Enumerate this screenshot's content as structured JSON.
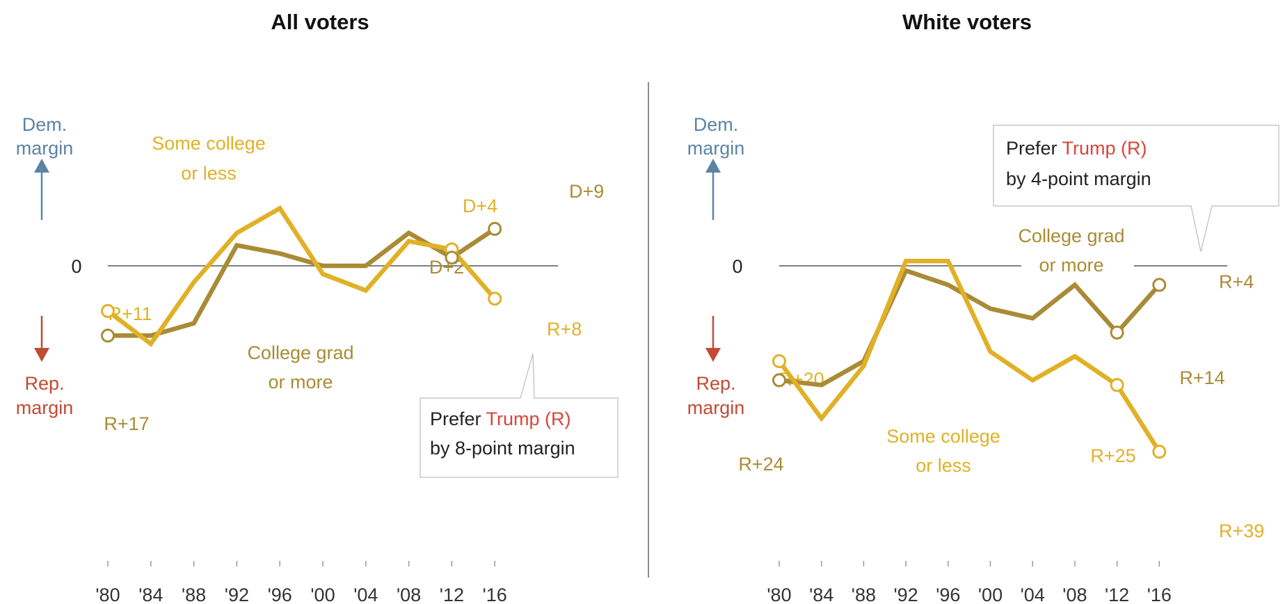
{
  "colors": {
    "some_college": "#e0b127",
    "college_grad": "#a98b35",
    "dem": "#5b84a4",
    "rep": "#c24a32",
    "trump": "#d9453a",
    "baseline": "#555555"
  },
  "legend": {
    "dem_top": "Dem.",
    "dem_bottom": "margin",
    "rep_top": "Rep.",
    "rep_bottom": "margin"
  },
  "chart_data": [
    {
      "type": "line",
      "title": "All voters",
      "x": [
        "'80",
        "'84",
        "'88",
        "'92",
        "'96",
        "'00",
        "'04",
        "'08",
        "'12",
        "'16"
      ],
      "zero_label": "0",
      "ylim": [
        -28,
        14
      ],
      "series": [
        {
          "name": "Some college or less",
          "label_lines": [
            "Some college",
            "or less"
          ],
          "color_key": "some_college",
          "values": [
            -11,
            -19,
            -4,
            8,
            14,
            -2,
            -6,
            6,
            4,
            -8
          ]
        },
        {
          "name": "College grad or more",
          "label_lines": [
            "College grad",
            "or more"
          ],
          "color_key": "college_grad",
          "values": [
            -17,
            -17,
            -14,
            5,
            3,
            0,
            0,
            8,
            2,
            9
          ]
        }
      ],
      "annotations": [
        {
          "text": "R+11",
          "color_key": "some_college"
        },
        {
          "text": "R+17",
          "color_key": "college_grad"
        },
        {
          "text": "D+4",
          "color_key": "some_college"
        },
        {
          "text": "D+2",
          "color_key": "college_grad"
        },
        {
          "text": "D+9",
          "color_key": "college_grad"
        },
        {
          "text": "R+8",
          "color_key": "some_college"
        }
      ],
      "callout": {
        "line1_prefix": "Prefer ",
        "highlight": "Trump (R)",
        "line2": "by 8-point margin"
      }
    },
    {
      "type": "line",
      "title": "White voters",
      "x": [
        "'80",
        "'84",
        "'88",
        "'92",
        "'96",
        "'00",
        "'04",
        "'08",
        "'12",
        "'16"
      ],
      "zero_label": "0",
      "ylim": [
        -45,
        10
      ],
      "series": [
        {
          "name": "Some college or less",
          "label_lines": [
            "Some college",
            "or less"
          ],
          "color_key": "some_college",
          "values": [
            -20,
            -32,
            -21,
            1,
            1,
            -18,
            -24,
            -19,
            -25,
            -39
          ]
        },
        {
          "name": "College grad or more",
          "label_lines": [
            "College grad",
            "or more"
          ],
          "color_key": "college_grad",
          "values": [
            -24,
            -25,
            -20,
            -1,
            -4,
            -9,
            -11,
            -4,
            -14,
            -4
          ]
        }
      ],
      "annotations": [
        {
          "text": "R+20",
          "color_key": "some_college"
        },
        {
          "text": "R+24",
          "color_key": "college_grad"
        },
        {
          "text": "R+4",
          "color_key": "college_grad"
        },
        {
          "text": "R+14",
          "color_key": "college_grad"
        },
        {
          "text": "R+25",
          "color_key": "some_college"
        },
        {
          "text": "R+39",
          "color_key": "some_college"
        }
      ],
      "callout": {
        "line1_prefix": "Prefer ",
        "highlight": "Trump (R)",
        "line2": "by 4-point margin"
      }
    }
  ]
}
